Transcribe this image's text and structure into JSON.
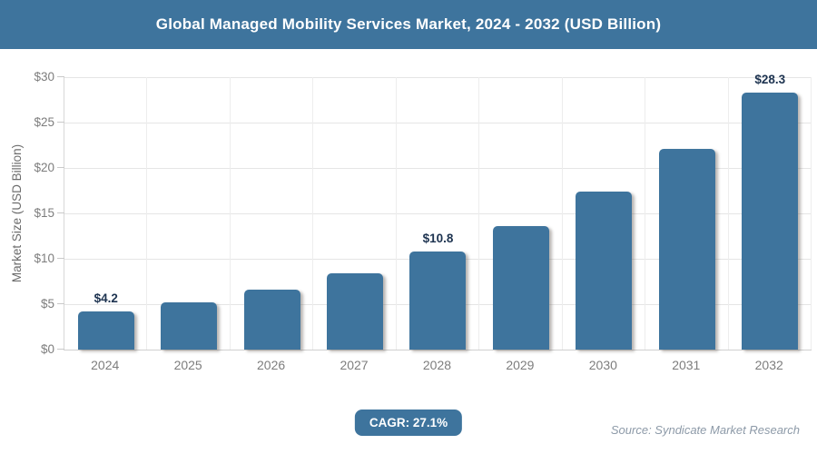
{
  "header": {
    "title": "Global Managed Mobility Services Market, 2024 - 2032 (USD Billion)"
  },
  "chart_data": {
    "type": "bar",
    "title": "Global Managed Mobility Services Market, 2024 - 2032 (USD Billion)",
    "categories": [
      "2024",
      "2025",
      "2026",
      "2027",
      "2028",
      "2029",
      "2030",
      "2031",
      "2032"
    ],
    "values": [
      4.2,
      5.2,
      6.6,
      8.4,
      10.8,
      13.6,
      17.4,
      22.1,
      28.3
    ],
    "data_labels": [
      "$4.2",
      "",
      "",
      "",
      "$10.8",
      "",
      "",
      "",
      "$28.3"
    ],
    "xlabel": "",
    "ylabel": "Market Size (USD Billion)",
    "ylim": [
      0,
      30
    ],
    "ytick_step": 5,
    "ytick_prefix": "$",
    "grid": true,
    "legend": "none",
    "bar_color": "#3e749d",
    "data_label_color": "#1d3350"
  },
  "footer": {
    "cagr_label": "CAGR: 27.1%",
    "source": "Source: Syndicate Market Research"
  },
  "colors": {
    "accent_blue": "#3e749d",
    "header_text": "#ffffff",
    "axis_text": "#7d7d7d",
    "gridline": "#e5e5e5"
  }
}
